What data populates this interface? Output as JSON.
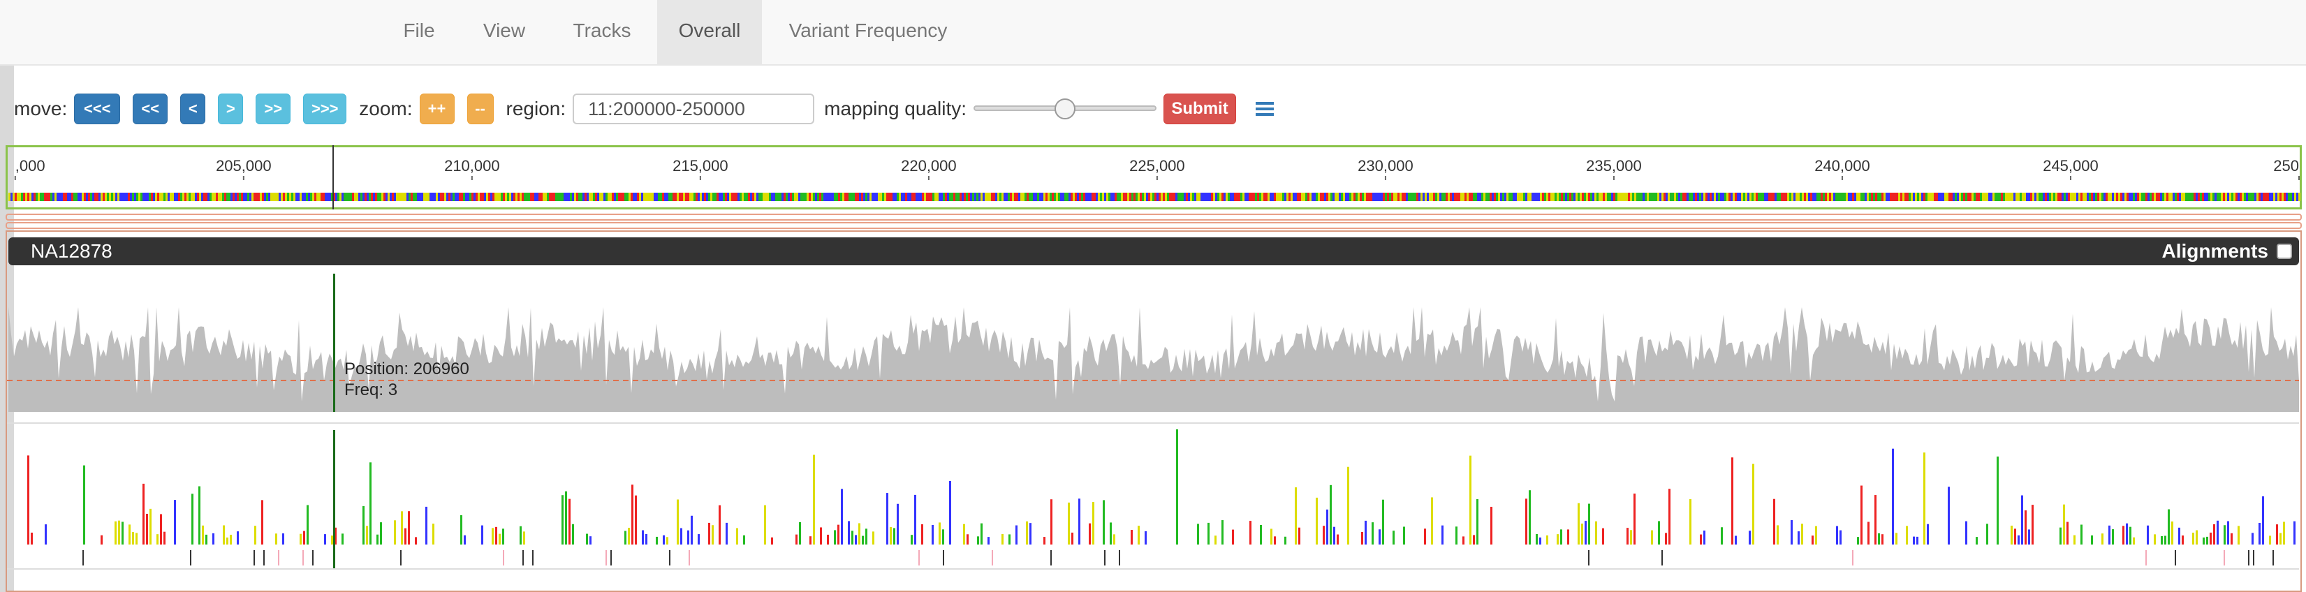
{
  "navbar": {
    "items": [
      {
        "label": "File"
      },
      {
        "label": "View"
      },
      {
        "label": "Tracks"
      },
      {
        "label": "Overall"
      },
      {
        "label": "Variant Frequency"
      }
    ]
  },
  "toolbar": {
    "move_label": "move:",
    "move_buttons": [
      "<<<",
      "<<",
      "<",
      ">",
      ">>",
      ">>>"
    ],
    "zoom_label": "zoom:",
    "zoom_in": "++",
    "zoom_out": "--",
    "region_label": "region:",
    "region_value": "11:200000-250000",
    "mapping_quality_label": "mapping quality:",
    "mapping_quality_value": 0.5,
    "submit_label": "Submit"
  },
  "ruler": {
    "ticks": [
      ",000",
      "205,000",
      "210,000",
      "215,000",
      "220,000",
      "225,000",
      "230,000",
      "235,000",
      "240,000",
      "245,000",
      "250"
    ],
    "tick_positions_bp": [
      200000,
      205000,
      210000,
      215000,
      220000,
      225000,
      230000,
      235000,
      240000,
      245000,
      250000
    ],
    "range_bp": [
      199850,
      250000
    ]
  },
  "track": {
    "name": "NA12878",
    "alignments_label": "Alignments",
    "alignments_checked": false,
    "cursor_bp": 206960,
    "tooltip_position": "Position: 206960",
    "tooltip_freq": "Freq: 3"
  },
  "colors": {
    "nucleotide_a": "#22bb22",
    "nucleotide_c": "#3333ff",
    "nucleotide_g": "#dddd00",
    "nucleotide_t": "#ee2222",
    "coverage": "#bdbdbd",
    "accent_blue": "#337ab7",
    "submit_red": "#d9534f"
  }
}
